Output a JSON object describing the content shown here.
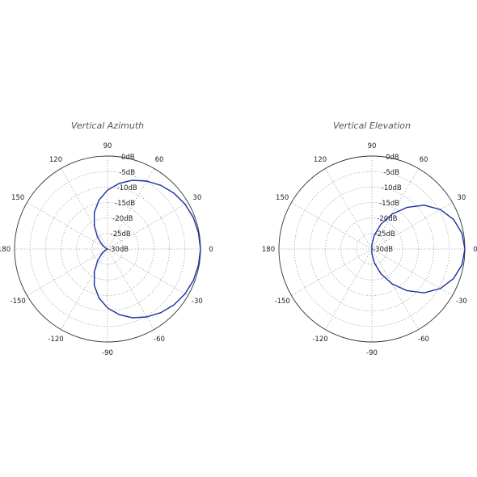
{
  "chart_data": [
    {
      "type": "polar",
      "title": "Vertical Azimuth",
      "angle_labels": [
        "0",
        "30",
        "60",
        "90",
        "120",
        "150",
        "180",
        "-150",
        "-120",
        "-90",
        "-60",
        "-30"
      ],
      "radial_labels": [
        "0dB",
        "-5dB",
        "-10dB",
        "-15dB",
        "-20dB",
        "-25dB",
        "-30dB"
      ],
      "rlim": [
        -30,
        0
      ],
      "grid": true,
      "series": [
        {
          "color": "#1a2fa0",
          "angles_deg": [
            0,
            10,
            20,
            30,
            40,
            50,
            60,
            70,
            80,
            90,
            100,
            110,
            120,
            130,
            140,
            150,
            160,
            170,
            180,
            190,
            200,
            210,
            220,
            230,
            240,
            250,
            260,
            270,
            280,
            290,
            300,
            310,
            320,
            330,
            340,
            350,
            360
          ],
          "values_db": [
            0,
            -0.2,
            -0.5,
            -1.1,
            -2.0,
            -3.2,
            -4.7,
            -6.4,
            -8.5,
            -11.0,
            -14.0,
            -17.5,
            -21.5,
            -25.0,
            -27.5,
            -29.0,
            -29.8,
            -30.0,
            -30.0,
            -30.0,
            -29.8,
            -29.0,
            -27.5,
            -25.0,
            -21.5,
            -17.5,
            -14.0,
            -11.0,
            -8.5,
            -6.4,
            -4.7,
            -3.2,
            -2.0,
            -1.1,
            -0.5,
            -0.2,
            0
          ]
        }
      ]
    },
    {
      "type": "polar",
      "title": "Vertical Elevation",
      "angle_labels": [
        "0",
        "30",
        "60",
        "90",
        "120",
        "150",
        "180",
        "-150",
        "-120",
        "-90",
        "-60",
        "-30"
      ],
      "radial_labels": [
        "0dB",
        "-5dB",
        "-10dB",
        "-15dB",
        "-20dB",
        "-25dB",
        "-30dB"
      ],
      "rlim": [
        -30,
        0
      ],
      "grid": true,
      "series": [
        {
          "color": "#1a2fa0",
          "angles_deg": [
            0,
            10,
            20,
            30,
            40,
            50,
            60,
            70,
            80,
            90,
            100,
            110,
            120,
            130,
            140,
            150,
            160,
            170,
            180,
            190,
            200,
            210,
            220,
            230,
            240,
            250,
            260,
            270,
            280,
            290,
            300,
            310,
            320,
            330,
            340,
            350,
            360
          ],
          "values_db": [
            0,
            -0.5,
            -2.0,
            -4.5,
            -8.0,
            -12.5,
            -17.0,
            -21.5,
            -25.5,
            -28.5,
            -30,
            -30,
            -30,
            -30,
            -30,
            -30,
            -30,
            -30,
            -30,
            -30,
            -30,
            -30,
            -30,
            -30,
            -30,
            -30,
            -30,
            -28.5,
            -25.5,
            -21.5,
            -17.0,
            -12.5,
            -8.0,
            -4.5,
            -2.0,
            -0.5,
            0
          ]
        }
      ]
    }
  ]
}
